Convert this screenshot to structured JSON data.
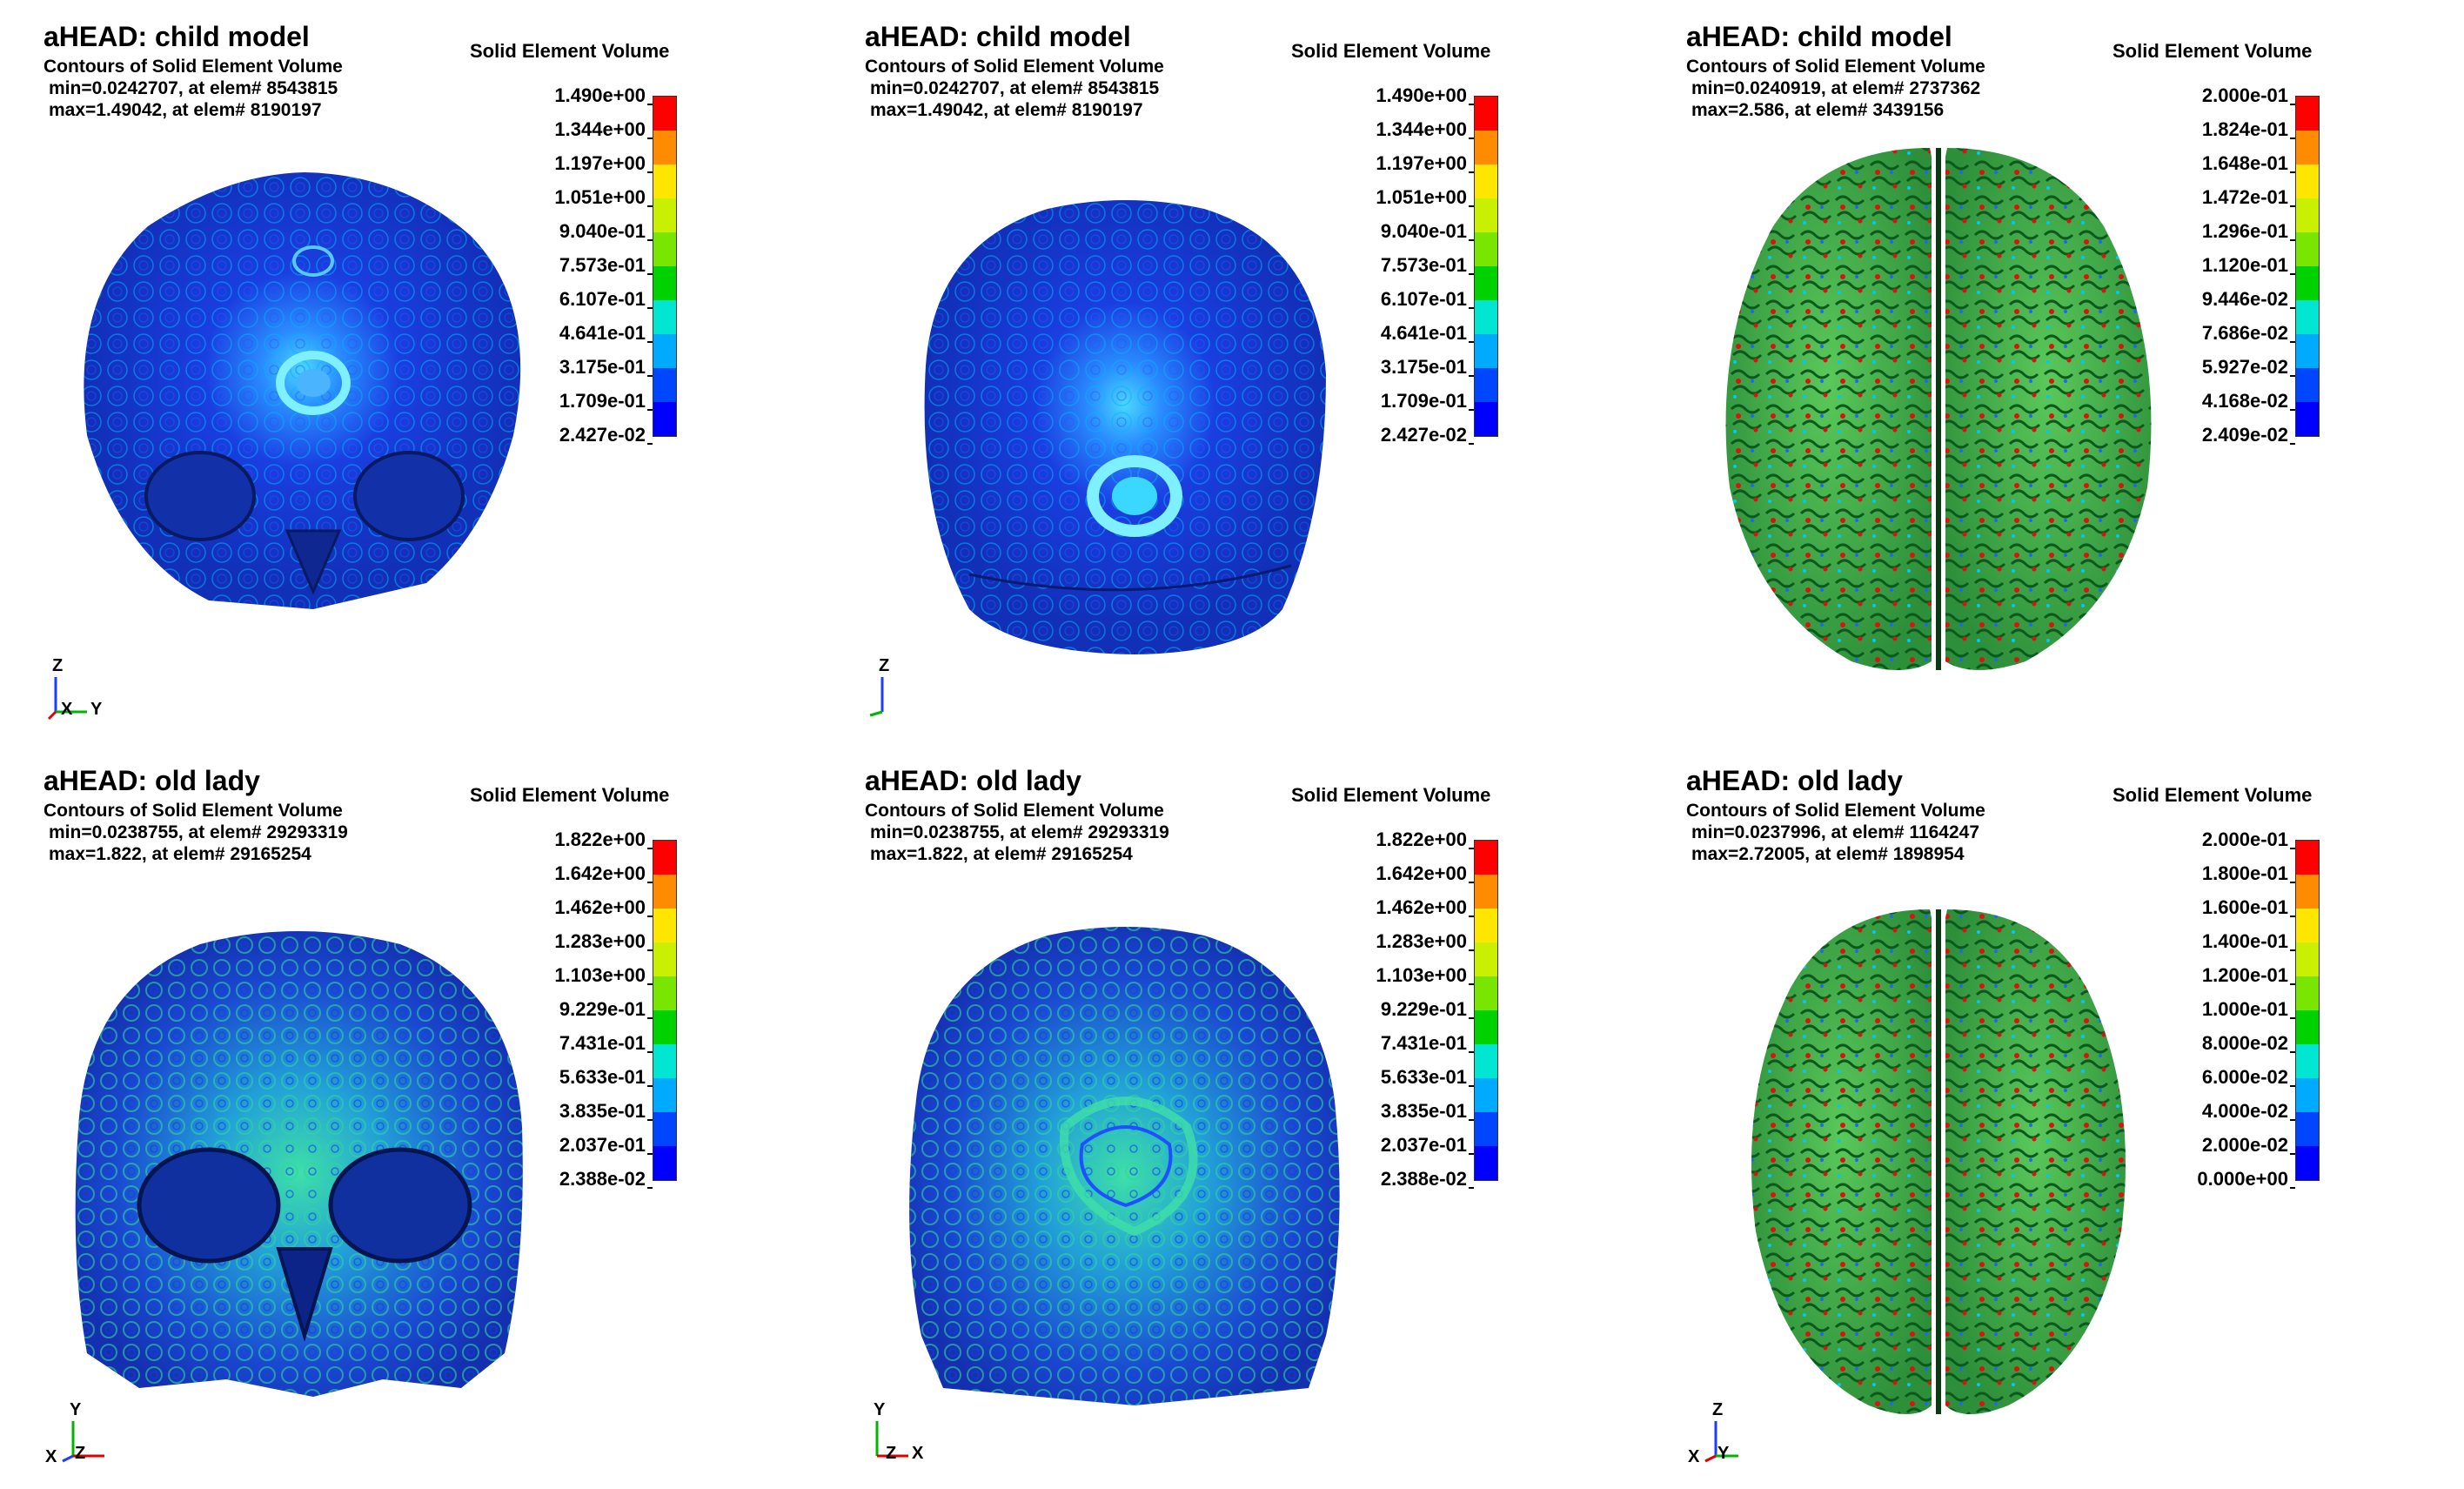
{
  "colorbar_colors": [
    "#0000ff",
    "#0046ff",
    "#00aaff",
    "#00e6d2",
    "#00d200",
    "#78e600",
    "#c8f000",
    "#ffe600",
    "#ff8c00",
    "#ff0000"
  ],
  "panels": [
    {
      "title": "aHEAD: child model",
      "subtitle": "Contours of Solid Element Volume",
      "min_text": "min=0.0242707, at elem# 8543815",
      "max_text": "max=1.49042, at elem# 8190197",
      "legend_title": "Solid Element Volume",
      "ticks": [
        "1.490e+00",
        "1.344e+00",
        "1.197e+00",
        "1.051e+00",
        "9.040e-01",
        "7.573e-01",
        "6.107e-01",
        "4.641e-01",
        "3.175e-01",
        "1.709e-01",
        "2.427e-02"
      ],
      "axes": {
        "vertical": "Z",
        "horizontal": "Y",
        "out": "X"
      }
    },
    {
      "title": "aHEAD: child model",
      "subtitle": "Contours of Solid Element Volume",
      "min_text": "min=0.0242707, at elem# 8543815",
      "max_text": "max=1.49042, at elem# 8190197",
      "legend_title": "Solid Element Volume",
      "ticks": [
        "1.490e+00",
        "1.344e+00",
        "1.197e+00",
        "1.051e+00",
        "9.040e-01",
        "7.573e-01",
        "6.107e-01",
        "4.641e-01",
        "3.175e-01",
        "1.709e-01",
        "2.427e-02"
      ],
      "axes": {
        "vertical": "Z",
        "horizontal": "",
        "out": ""
      }
    },
    {
      "title": "aHEAD: child model",
      "subtitle": "Contours of Solid Element Volume",
      "min_text": "min=0.0240919, at elem# 2737362",
      "max_text": "max=2.586, at elem# 3439156",
      "legend_title": "Solid Element Volume",
      "ticks": [
        "2.000e-01",
        "1.824e-01",
        "1.648e-01",
        "1.472e-01",
        "1.296e-01",
        "1.120e-01",
        "9.446e-02",
        "7.686e-02",
        "5.927e-02",
        "4.168e-02",
        "2.409e-02"
      ],
      "axes": {
        "vertical": "",
        "horizontal": "",
        "out": ""
      }
    },
    {
      "title": "aHEAD: old lady",
      "subtitle": "Contours of Solid Element Volume",
      "min_text": "min=0.0238755, at elem# 29293319",
      "max_text": "max=1.822, at elem# 29165254",
      "legend_title": "Solid Element Volume",
      "ticks": [
        "1.822e+00",
        "1.642e+00",
        "1.462e+00",
        "1.283e+00",
        "1.103e+00",
        "9.229e-01",
        "7.431e-01",
        "5.633e-01",
        "3.835e-01",
        "2.037e-01",
        "2.388e-02"
      ],
      "axes": {
        "vertical": "Y",
        "horizontal": "Z",
        "out": "X"
      }
    },
    {
      "title": "aHEAD: old lady",
      "subtitle": "Contours of Solid Element Volume",
      "min_text": "min=0.0238755, at elem# 29293319",
      "max_text": "max=1.822, at elem# 29165254",
      "legend_title": "Solid Element Volume",
      "ticks": [
        "1.822e+00",
        "1.642e+00",
        "1.462e+00",
        "1.283e+00",
        "1.103e+00",
        "9.229e-01",
        "7.431e-01",
        "5.633e-01",
        "3.835e-01",
        "2.037e-01",
        "2.388e-02"
      ],
      "axes": {
        "vertical": "Y",
        "horizontal": "X",
        "out": "Z"
      }
    },
    {
      "title": "aHEAD: old lady",
      "subtitle": "Contours of Solid Element Volume",
      "min_text": "min=0.0237996, at elem# 1164247",
      "max_text": "max=2.72005, at elem# 1898954",
      "legend_title": "Solid Element Volume",
      "ticks": [
        "2.000e-01",
        "1.800e-01",
        "1.600e-01",
        "1.400e-01",
        "1.200e-01",
        "1.000e-01",
        "8.000e-02",
        "6.000e-02",
        "4.000e-02",
        "2.000e-02",
        "0.000e+00"
      ],
      "axes": {
        "vertical": "Z",
        "horizontal": "Y",
        "out": "X"
      }
    }
  ]
}
